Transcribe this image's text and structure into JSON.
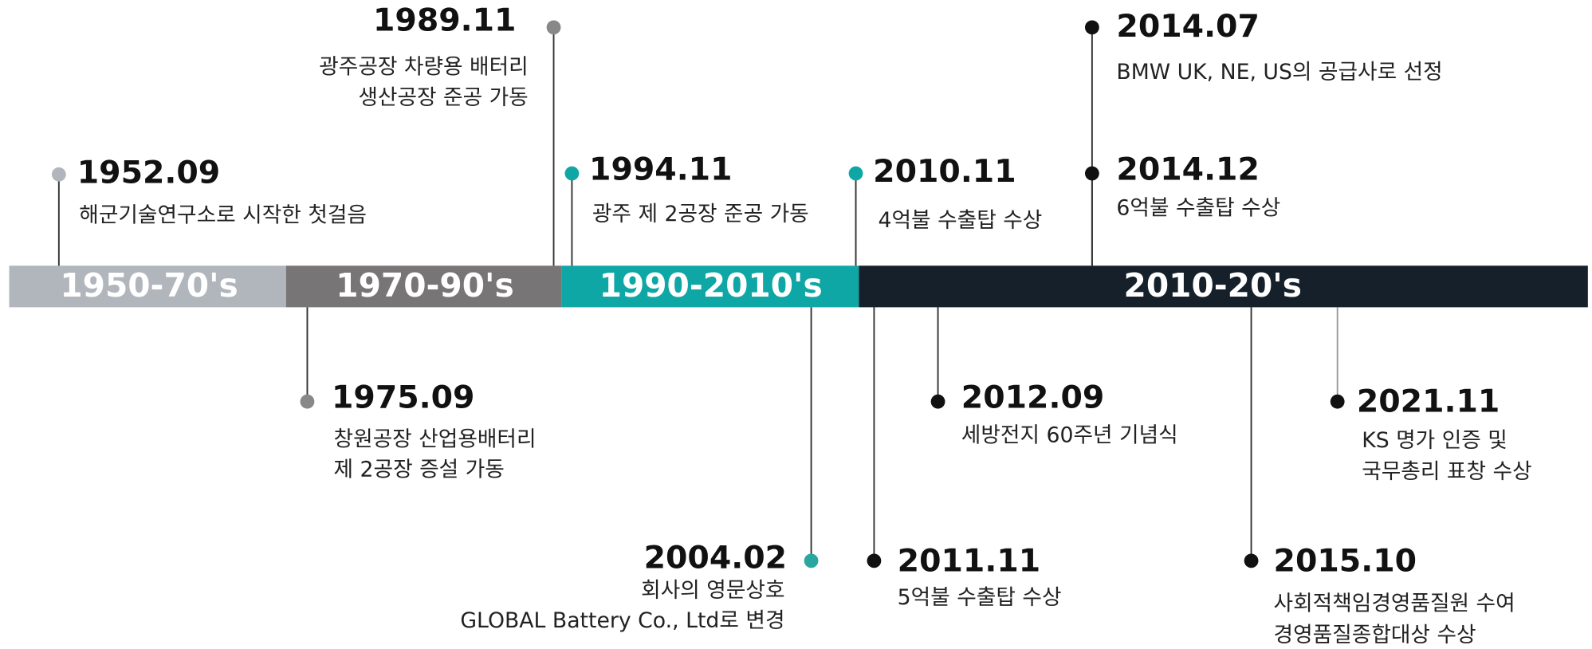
{
  "eras": [
    {
      "label": "1950-70's"
    },
    {
      "label": "1970-90's"
    },
    {
      "label": "1990-2010's"
    },
    {
      "label": "2010-20's"
    }
  ],
  "events": [
    {
      "date": "1952.09",
      "lines": [
        "해군기술연구소로 시작한 첫걸음"
      ]
    },
    {
      "date": "1989.11",
      "lines": [
        "광주공장 차량용 배터리",
        "생산공장 준공 가동"
      ]
    },
    {
      "date": "1994.11",
      "lines": [
        "광주 제 2공장 준공 가동"
      ]
    },
    {
      "date": "2010.11",
      "lines": [
        "4억불 수출탑 수상"
      ]
    },
    {
      "date": "2014.07",
      "lines": [
        "BMW UK, NE, US의 공급사로 선정"
      ]
    },
    {
      "date": "2014.12",
      "lines": [
        "6억불 수출탑 수상"
      ]
    },
    {
      "date": "1975.09",
      "lines": [
        "창원공장 산업용배터리",
        "제 2공장 증설 가동"
      ]
    },
    {
      "date": "2004.02",
      "lines": [
        "회사의 영문상호",
        "GLOBAL Battery Co., Ltd로 변경"
      ]
    },
    {
      "date": "2011.11",
      "lines": [
        "5억불 수출탑 수상"
      ]
    },
    {
      "date": "2012.09",
      "lines": [
        "세방전지 60주년 기념식"
      ]
    },
    {
      "date": "2015.10",
      "lines": [
        "사회적책임경영품질원 수여",
        "경영품질종합대상 수상"
      ]
    },
    {
      "date": "2021.11",
      "lines": [
        "KS 명가 인증 및",
        "국무총리 표창 수상"
      ]
    }
  ]
}
